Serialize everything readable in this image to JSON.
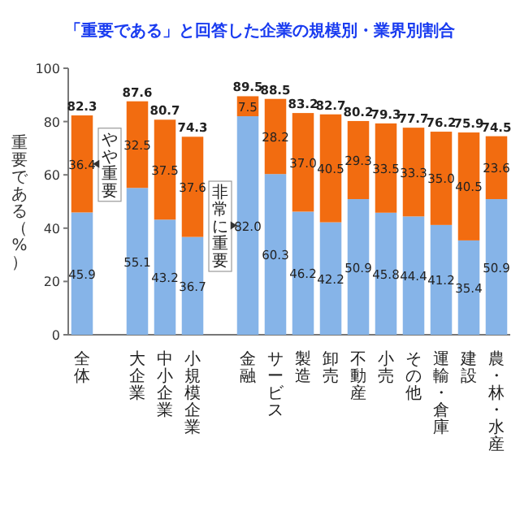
{
  "chart_data": {
    "type": "bar",
    "stacked": true,
    "title": "「重要である」と回答した企業の規模別・業界別割合",
    "ylabel": "重要である（%）",
    "categories": [
      "全体",
      null,
      "大企業",
      "中小企業",
      "小規模企業",
      null,
      "金融",
      "サービス",
      "製造",
      "卸売",
      "不動産",
      "小売",
      "その他",
      "運輸・倉庫",
      "建設",
      "農・林・水産"
    ],
    "series": [
      {
        "color": "#86b4e8",
        "values": [
          45.9,
          null,
          55.1,
          43.2,
          36.7,
          null,
          82.0,
          60.3,
          46.2,
          42.2,
          50.9,
          45.8,
          44.4,
          41.2,
          35.4,
          50.9
        ],
        "value_labels": [
          "45.9",
          null,
          "55.1",
          "43.2",
          "36.7",
          null,
          "82.0",
          "60.3",
          "46.2",
          "42.2",
          "50.9",
          "45.8",
          "44.4",
          "41.2",
          "35.4",
          "50.9"
        ]
      },
      {
        "color": "#f26c10",
        "values": [
          36.4,
          null,
          32.5,
          37.5,
          37.6,
          null,
          7.5,
          28.2,
          37.0,
          40.5,
          29.3,
          33.5,
          33.3,
          35.0,
          40.5,
          23.6
        ],
        "value_labels": [
          "36.4",
          null,
          "32.5",
          "37.5",
          "37.6",
          null,
          "7.5",
          "28.2",
          "37.0",
          "40.5",
          "29.3",
          "33.5",
          "33.3",
          "35.0",
          "40.5",
          "23.6"
        ]
      }
    ],
    "totals": [
      "82.3",
      null,
      "87.6",
      "80.7",
      "74.3",
      null,
      "89.5",
      "88.5",
      "83.2",
      "82.7",
      "80.2",
      "79.3",
      "77.7",
      "76.2",
      "75.9",
      "74.5"
    ],
    "ylim": [
      0,
      100
    ],
    "yticks": [
      0,
      20,
      40,
      60,
      80,
      100
    ],
    "annotations": [
      "やや重要",
      "非常に重要"
    ]
  }
}
